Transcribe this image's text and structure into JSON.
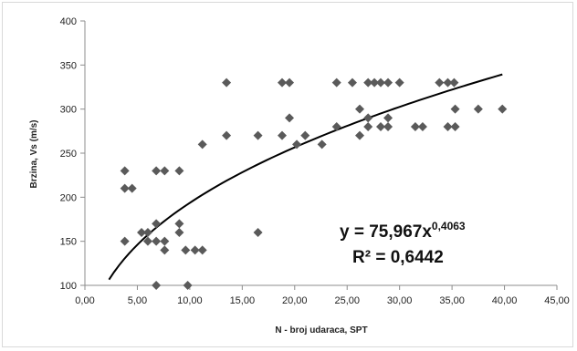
{
  "chart_data": {
    "type": "scatter",
    "title": "",
    "xlabel": "N - broj udaraca, SPT",
    "ylabel": "Brzina, Vs (m/s)",
    "xlim": [
      0,
      45
    ],
    "ylim": [
      100,
      400
    ],
    "x_ticks": [
      "0,00",
      "5,00",
      "10,00",
      "15,00",
      "20,00",
      "25,00",
      "30,00",
      "35,00",
      "40,00",
      "45,00"
    ],
    "y_ticks": [
      "100",
      "150",
      "200",
      "250",
      "300",
      "350",
      "400"
    ],
    "marker_color": "#5a5a5a",
    "trendline": {
      "type": "power",
      "a": 75.967,
      "b": 0.4063,
      "x_range": [
        2.3,
        39.8
      ],
      "color": "#000000",
      "equation_text": "y = 75,967x",
      "exponent_text": "0,4063",
      "r2_text": "R² = 0,6442"
    },
    "points": [
      [
        3.8,
        230
      ],
      [
        3.8,
        210
      ],
      [
        4.5,
        210
      ],
      [
        3.8,
        150
      ],
      [
        5.4,
        160
      ],
      [
        6.0,
        160
      ],
      [
        6.0,
        150
      ],
      [
        6.8,
        170
      ],
      [
        6.8,
        150
      ],
      [
        6.8,
        100
      ],
      [
        6.8,
        230
      ],
      [
        7.6,
        230
      ],
      [
        7.6,
        150
      ],
      [
        7.6,
        140
      ],
      [
        9.0,
        230
      ],
      [
        9.0,
        170
      ],
      [
        9.0,
        160
      ],
      [
        9.6,
        140
      ],
      [
        9.8,
        100
      ],
      [
        10.5,
        140
      ],
      [
        11.2,
        140
      ],
      [
        11.2,
        260
      ],
      [
        13.5,
        330
      ],
      [
        13.5,
        270
      ],
      [
        16.5,
        270
      ],
      [
        16.5,
        160
      ],
      [
        18.8,
        330
      ],
      [
        19.5,
        330
      ],
      [
        18.8,
        270
      ],
      [
        19.5,
        290
      ],
      [
        20.2,
        260
      ],
      [
        21.0,
        270
      ],
      [
        22.6,
        260
      ],
      [
        24.0,
        330
      ],
      [
        24.0,
        280
      ],
      [
        25.5,
        330
      ],
      [
        26.2,
        300
      ],
      [
        26.2,
        270
      ],
      [
        27.0,
        330
      ],
      [
        27.0,
        290
      ],
      [
        27.0,
        280
      ],
      [
        27.6,
        330
      ],
      [
        28.2,
        330
      ],
      [
        28.2,
        280
      ],
      [
        28.9,
        330
      ],
      [
        28.9,
        290
      ],
      [
        28.9,
        280
      ],
      [
        30.0,
        330
      ],
      [
        31.5,
        280
      ],
      [
        32.2,
        280
      ],
      [
        33.8,
        330
      ],
      [
        34.6,
        330
      ],
      [
        35.2,
        330
      ],
      [
        34.6,
        280
      ],
      [
        35.3,
        300
      ],
      [
        35.3,
        280
      ],
      [
        37.5,
        300
      ],
      [
        39.8,
        300
      ]
    ]
  }
}
